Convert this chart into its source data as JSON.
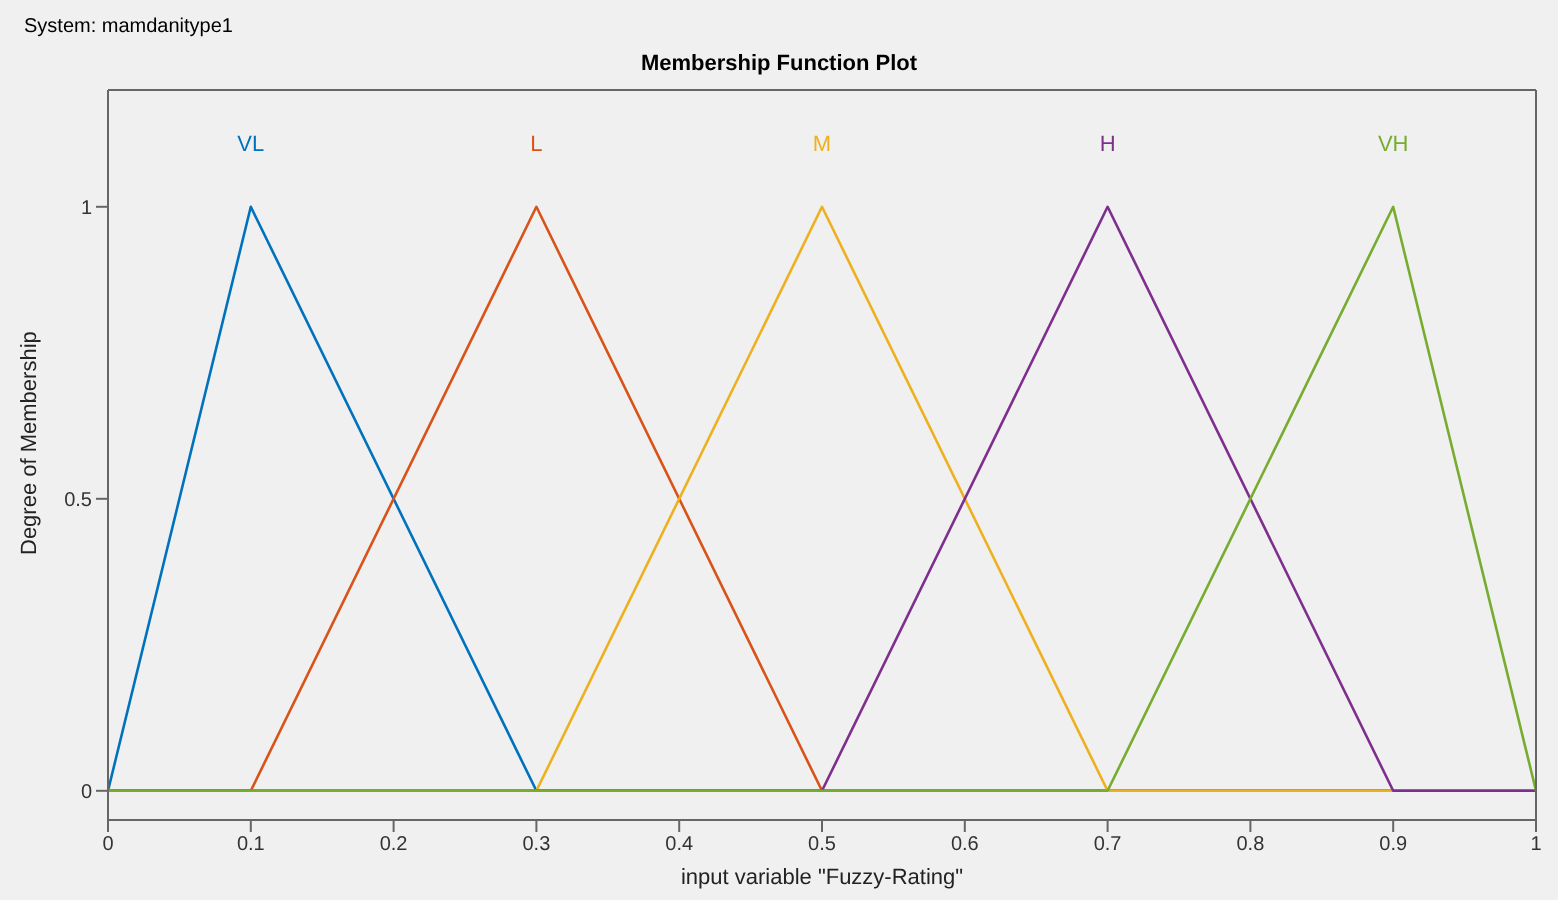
{
  "chart_data": {
    "type": "line",
    "title": "Membership Function Plot",
    "subtitle": "System: mamdanitype1",
    "xlabel": "input variable \"Fuzzy-Rating\"",
    "ylabel": "Degree of Membership",
    "series": [
      {
        "name": "VL",
        "color": "#0072bd",
        "x": [
          0,
          0.1,
          0.3,
          1
        ],
        "values": [
          0,
          1,
          0,
          0
        ]
      },
      {
        "name": "L",
        "color": "#d95319",
        "x": [
          0,
          0.1,
          0.3,
          0.5,
          1
        ],
        "values": [
          0,
          0,
          1,
          0,
          0
        ]
      },
      {
        "name": "M",
        "color": "#edb120",
        "x": [
          0,
          0.3,
          0.5,
          0.7,
          1
        ],
        "values": [
          0,
          0,
          1,
          0,
          0
        ]
      },
      {
        "name": "H",
        "color": "#7e2f8e",
        "x": [
          0,
          0.5,
          0.7,
          0.9,
          1
        ],
        "values": [
          0,
          0,
          1,
          0,
          0
        ]
      },
      {
        "name": "VH",
        "color": "#77ac30",
        "x": [
          0,
          0.7,
          0.9,
          1
        ],
        "values": [
          0,
          0,
          1,
          0
        ]
      }
    ],
    "xlim": [
      0,
      1
    ],
    "xticks": [
      0,
      0.1,
      0.2,
      0.3,
      0.4,
      0.5,
      0.6,
      0.7,
      0.8,
      0.9,
      1
    ],
    "ylim": [
      -0.05,
      1.2
    ],
    "yticks": [
      0,
      0.5,
      1
    ],
    "legend": false,
    "marker": "none",
    "line_style": "solid"
  }
}
